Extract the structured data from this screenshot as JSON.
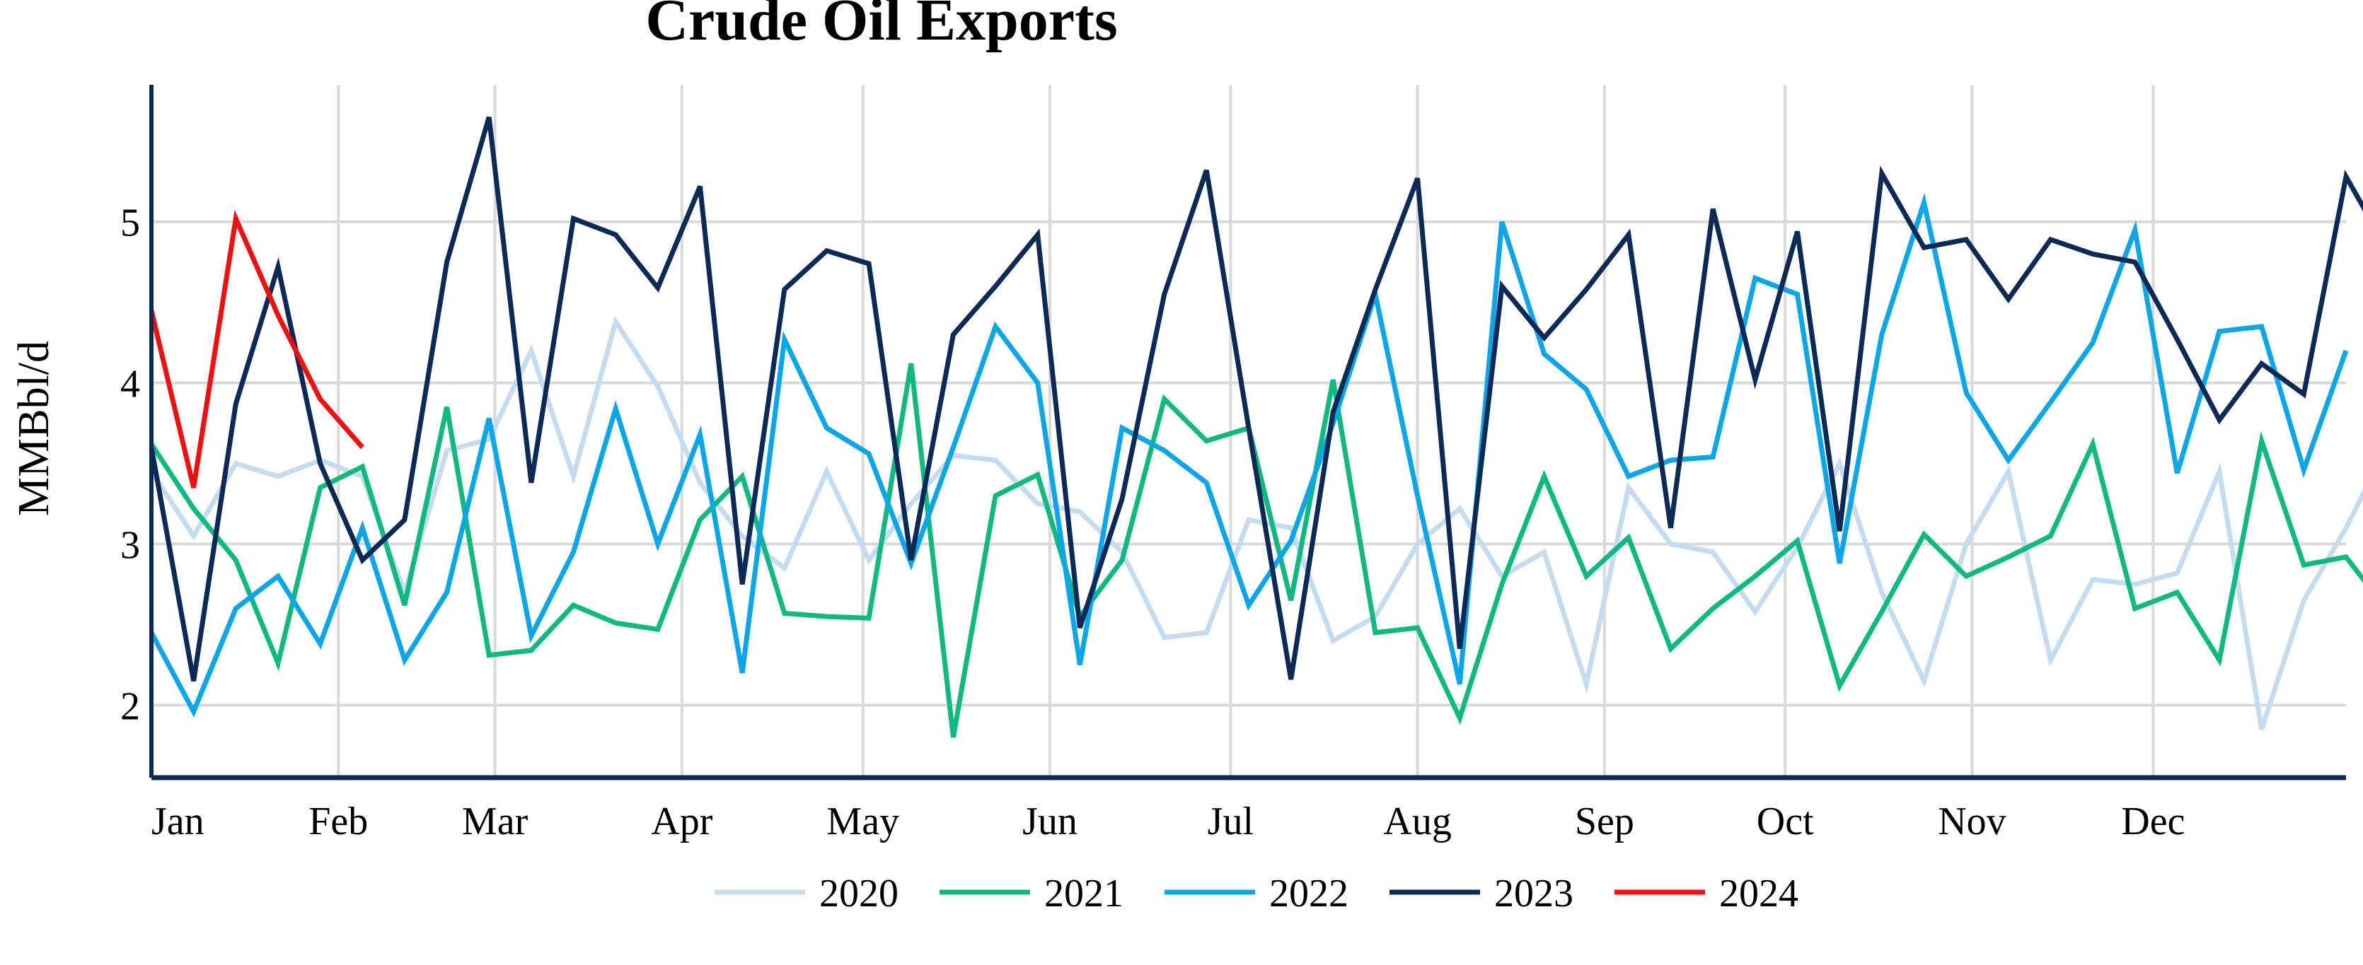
{
  "chart_data": {
    "type": "line",
    "title": "Crude Oil Exports",
    "xlabel": "",
    "ylabel": "MMBbl/d",
    "x_unit": "week of year",
    "xlim": [
      1,
      53
    ],
    "ylim": [
      1.55,
      5.85
    ],
    "y_ticks": [
      2,
      3,
      4,
      5
    ],
    "month_ticks": [
      {
        "label": "Jan",
        "week": 1
      },
      {
        "label": "Feb",
        "week": 5.43
      },
      {
        "label": "Mar",
        "week": 9.14
      },
      {
        "label": "Apr",
        "week": 13.57
      },
      {
        "label": "May",
        "week": 17.86
      },
      {
        "label": "Jun",
        "week": 22.29
      },
      {
        "label": "Jul",
        "week": 26.57
      },
      {
        "label": "Aug",
        "week": 31
      },
      {
        "label": "Sep",
        "week": 35.43
      },
      {
        "label": "Oct",
        "week": 39.71
      },
      {
        "label": "Nov",
        "week": 44.14
      },
      {
        "label": "Dec",
        "week": 48.43
      }
    ],
    "grid": true,
    "legend_position": "bottom",
    "series": [
      {
        "name": "2020",
        "color": "#c5dcf0",
        "values": [
          3.45,
          3.05,
          3.5,
          3.42,
          3.52,
          3.42,
          2.7,
          3.58,
          3.65,
          4.2,
          3.42,
          4.38,
          3.98,
          3.38,
          3.05,
          2.85,
          3.45,
          2.9,
          3.25,
          3.55,
          3.52,
          3.25,
          3.2,
          2.95,
          2.42,
          2.45,
          3.15,
          3.1,
          2.4,
          2.55,
          3.0,
          3.22,
          2.8,
          2.95,
          2.13,
          3.35,
          3.0,
          2.95,
          2.58,
          2.98,
          3.5,
          2.7,
          2.15,
          3.0,
          3.45,
          2.28,
          2.78,
          2.75,
          2.82,
          3.45,
          1.85,
          2.65,
          3.1,
          3.62,
          3.62
        ]
      },
      {
        "name": "2021",
        "color": "#10b981",
        "values": [
          3.62,
          3.22,
          2.9,
          2.26,
          3.35,
          3.48,
          2.62,
          3.85,
          2.31,
          2.34,
          2.62,
          2.51,
          2.47,
          3.15,
          3.42,
          2.57,
          2.55,
          2.54,
          4.12,
          1.8,
          3.3,
          3.43,
          2.55,
          2.9,
          3.9,
          3.64,
          3.72,
          2.65,
          4.02,
          2.45,
          2.48,
          1.92,
          2.75,
          3.42,
          2.8,
          3.04,
          2.35,
          2.6,
          2.8,
          3.02,
          2.12,
          2.58,
          3.06,
          2.8,
          2.92,
          3.05,
          3.62,
          2.6,
          2.7,
          2.28,
          3.64,
          2.87,
          2.92,
          2.58
        ]
      },
      {
        "name": "2022",
        "color": "#0aa6e8",
        "values": [
          2.45,
          1.96,
          2.6,
          2.8,
          2.38,
          3.1,
          2.28,
          2.7,
          3.78,
          2.43,
          2.95,
          3.84,
          3.0,
          3.68,
          2.2,
          4.27,
          3.72,
          3.56,
          2.88,
          3.6,
          4.35,
          4.0,
          2.25,
          3.72,
          3.58,
          3.38,
          2.62,
          3.02,
          3.75,
          4.55,
          3.3,
          2.13,
          5.0,
          4.18,
          3.96,
          3.42,
          3.52,
          3.54,
          4.65,
          4.55,
          2.88,
          4.3,
          5.12,
          3.94,
          3.52,
          3.88,
          4.25,
          4.95,
          3.44,
          4.32,
          4.35,
          3.46,
          4.2
        ]
      },
      {
        "name": "2023",
        "color": "#0d2a57",
        "values": [
          3.6,
          2.15,
          3.87,
          4.72,
          3.5,
          2.9,
          3.15,
          4.75,
          5.65,
          3.38,
          5.02,
          4.92,
          4.59,
          5.22,
          2.75,
          4.58,
          4.82,
          4.74,
          2.9,
          4.3,
          4.6,
          4.92,
          2.48,
          3.28,
          4.55,
          5.32,
          3.72,
          2.16,
          3.82,
          4.58,
          5.27,
          2.35,
          4.6,
          4.28,
          4.58,
          4.92,
          3.1,
          5.08,
          4.02,
          4.94,
          3.08,
          5.3,
          4.84,
          4.89,
          4.52,
          4.89,
          4.8,
          4.75,
          4.27,
          3.77,
          4.12,
          3.93,
          5.28,
          4.82
        ]
      },
      {
        "name": "2024",
        "color": "#ee1111",
        "values": [
          4.45,
          3.35,
          5.02,
          4.42,
          3.9,
          3.6
        ]
      }
    ]
  }
}
